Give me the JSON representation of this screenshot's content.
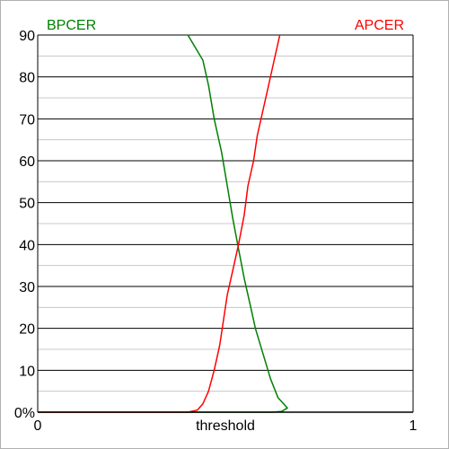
{
  "chart_data": {
    "type": "line",
    "title": "",
    "xlabel": "threshold",
    "ylabel": "",
    "xlim": [
      0,
      1
    ],
    "ylim": [
      0,
      90
    ],
    "y_major_ticks": [
      0,
      10,
      20,
      30,
      40,
      50,
      60,
      70,
      80,
      90
    ],
    "y_minor_ticks": [
      5,
      15,
      25,
      35,
      45,
      55,
      65,
      75,
      85
    ],
    "y_tick_labels": [
      "0%",
      "10",
      "20",
      "30",
      "40",
      "50",
      "60",
      "70",
      "80",
      "90"
    ],
    "x_tick_labels": [
      {
        "value": 0,
        "label": "0"
      },
      {
        "value": 1,
        "label": "1"
      }
    ],
    "grid": true,
    "series": [
      {
        "name": "BPCER",
        "color": "#008000",
        "legend_position": "top-left",
        "points": [
          [
            0.0,
            0
          ],
          [
            0.35,
            0
          ],
          [
            0.55,
            0
          ],
          [
            0.625,
            0
          ],
          [
            0.65,
            0.2
          ],
          [
            0.665,
            1
          ],
          [
            0.64,
            3.5
          ],
          [
            0.62,
            8
          ],
          [
            0.6,
            14
          ],
          [
            0.58,
            20
          ],
          [
            0.565,
            26
          ],
          [
            0.55,
            32
          ],
          [
            0.535,
            39
          ],
          [
            0.52,
            46
          ],
          [
            0.505,
            54
          ],
          [
            0.49,
            62
          ],
          [
            0.47,
            70
          ],
          [
            0.455,
            78
          ],
          [
            0.44,
            84
          ],
          [
            0.4,
            90
          ]
        ]
      },
      {
        "name": "APCER",
        "color": "#ff0000",
        "legend_position": "top-right",
        "points": [
          [
            0.0,
            0
          ],
          [
            0.3,
            0
          ],
          [
            0.4,
            0
          ],
          [
            0.425,
            0.5
          ],
          [
            0.44,
            2
          ],
          [
            0.455,
            5
          ],
          [
            0.47,
            10
          ],
          [
            0.485,
            16
          ],
          [
            0.495,
            22
          ],
          [
            0.505,
            28
          ],
          [
            0.52,
            34
          ],
          [
            0.535,
            40
          ],
          [
            0.55,
            47
          ],
          [
            0.56,
            54
          ],
          [
            0.575,
            60
          ],
          [
            0.585,
            66
          ],
          [
            0.6,
            72
          ],
          [
            0.615,
            78
          ],
          [
            0.63,
            84
          ],
          [
            0.645,
            90
          ]
        ]
      }
    ]
  }
}
